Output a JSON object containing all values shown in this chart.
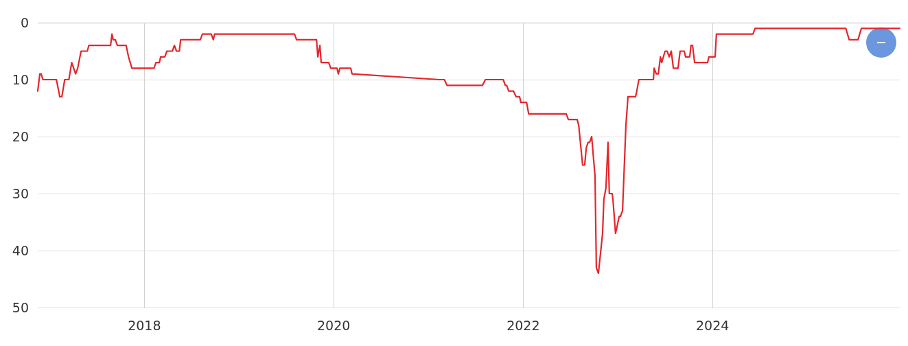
{
  "chart_data": {
    "type": "line",
    "color": "#e3262c",
    "x": [
      "2016-11-16",
      "2016-11-24",
      "2016-11-29",
      "2016-12-06",
      "2017-01-27",
      "2017-02-09",
      "2017-02-17",
      "2017-02-28",
      "2017-03-16",
      "2017-03-27",
      "2017-04-11",
      "2017-04-19",
      "2017-05-02",
      "2017-05-26",
      "2017-06-01",
      "2017-08-24",
      "2017-08-29",
      "2017-09-03",
      "2017-09-11",
      "2017-09-19",
      "2017-10-23",
      "2017-11-01",
      "2017-11-14",
      "2018-02-07",
      "2018-02-15",
      "2018-02-28",
      "2018-03-05",
      "2018-03-21",
      "2018-03-29",
      "2018-04-19",
      "2018-04-27",
      "2018-05-05",
      "2018-05-16",
      "2018-05-21",
      "2018-08-05",
      "2018-08-13",
      "2018-09-16",
      "2018-09-24",
      "2018-09-29",
      "2019-08-03",
      "2019-08-11",
      "2019-10-27",
      "2019-11-01",
      "2019-11-09",
      "2019-11-14",
      "2019-12-13",
      "2019-12-21",
      "2020-01-14",
      "2020-01-19",
      "2020-01-25",
      "2020-03-07",
      "2020-03-12",
      "2021-02-12",
      "2021-03-03",
      "2021-03-13",
      "2021-07-28",
      "2021-08-08",
      "2021-10-16",
      "2021-10-24",
      "2021-10-29",
      "2021-11-06",
      "2021-11-24",
      "2021-12-05",
      "2021-12-18",
      "2021-12-23",
      "2022-01-14",
      "2022-01-22",
      "2022-06-16",
      "2022-06-24",
      "2022-07-28",
      "2022-08-03",
      "2022-08-18",
      "2022-08-26",
      "2022-09-01",
      "2022-09-08",
      "2022-09-14",
      "2022-09-22",
      "2022-10-05",
      "2022-10-10",
      "2022-10-18",
      "2022-11-03",
      "2022-11-08",
      "2022-11-16",
      "2022-11-24",
      "2022-11-29",
      "2022-12-10",
      "2022-12-13",
      "2022-12-23",
      "2022-12-28",
      "2023-01-06",
      "2023-01-11",
      "2023-01-19",
      "2023-02-01",
      "2023-02-09",
      "2023-03-10",
      "2023-03-15",
      "2023-03-23",
      "2023-05-18",
      "2023-05-21",
      "2023-05-29",
      "2023-06-06",
      "2023-06-14",
      "2023-06-19",
      "2023-07-02",
      "2023-07-10",
      "2023-07-18",
      "2023-07-26",
      "2023-08-03",
      "2023-08-21",
      "2023-08-29",
      "2023-09-14",
      "2023-09-19",
      "2023-10-05",
      "2023-10-10",
      "2023-10-16",
      "2023-10-24",
      "2023-12-13",
      "2023-12-18",
      "2024-01-11",
      "2024-01-16",
      "2024-06-05",
      "2024-06-13",
      "2025-05-29",
      "2025-06-11",
      "2025-07-15",
      "2025-07-28",
      "2025-12-23"
    ],
    "values": [
      12,
      9,
      9,
      10,
      10,
      13,
      13,
      10,
      10,
      7,
      9,
      8,
      5,
      5,
      4,
      4,
      2,
      3,
      3,
      4,
      4,
      6,
      8,
      8,
      7,
      7,
      6,
      6,
      5,
      5,
      4,
      5,
      5,
      3,
      3,
      2,
      2,
      3,
      2,
      2,
      3,
      3,
      6,
      4,
      7,
      7,
      8,
      8,
      9,
      8,
      8,
      9,
      10,
      10,
      11,
      11,
      10,
      10,
      11,
      11,
      12,
      12,
      13,
      13,
      14,
      14,
      16,
      16,
      17,
      17,
      18,
      25,
      25,
      22,
      21,
      21,
      20,
      27,
      43,
      44,
      37,
      31,
      29,
      21,
      30,
      30,
      31,
      37,
      36,
      34,
      34,
      33,
      18,
      13,
      13,
      12,
      10,
      10,
      8,
      9,
      9,
      6,
      7,
      5,
      5,
      6,
      5,
      8,
      8,
      5,
      5,
      6,
      6,
      4,
      4,
      7,
      7,
      6,
      6,
      2,
      2,
      1,
      1,
      3,
      3,
      1,
      1
    ],
    "xlim": [
      "2016-11-16",
      "2025-12-23"
    ],
    "xticks": [
      "2018",
      "2020",
      "2022",
      "2024"
    ],
    "ylim": [
      50,
      0
    ],
    "yticks": [
      0,
      10,
      20,
      30,
      40,
      50
    ],
    "grid": true
  }
}
